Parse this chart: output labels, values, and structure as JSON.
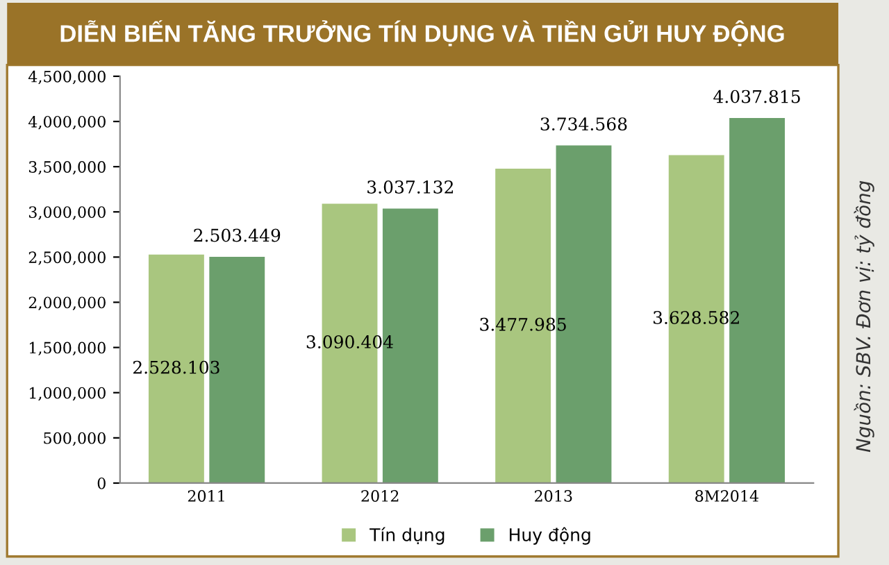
{
  "chart_data": {
    "type": "bar",
    "title": "DIỄN BIẾN TĂNG TRƯỞNG TÍN DỤNG VÀ TIỀN GỬI HUY ĐỘNG",
    "categories": [
      "2011",
      "2012",
      "2013",
      "8M2014"
    ],
    "series": [
      {
        "name": "Tín dụng",
        "color": "#a9c67f",
        "values": [
          2528103,
          3090404,
          3477985,
          3628582
        ],
        "value_labels": [
          "2.528.103",
          "3.090.404",
          "3.477.985",
          "3.628.582"
        ]
      },
      {
        "name": "Huy động",
        "color": "#6b9f6c",
        "values": [
          2503449,
          3037132,
          3734568,
          4037815
        ],
        "value_labels": [
          "2.503.449",
          "3.037.132",
          "3.734.568",
          "4.037.815"
        ]
      }
    ],
    "ylim": [
      0,
      4500000
    ],
    "yticks": [
      {
        "value": 0,
        "label": "0"
      },
      {
        "value": 500000,
        "label": "500,000"
      },
      {
        "value": 1000000,
        "label": "1,000,000"
      },
      {
        "value": 1500000,
        "label": "1,500,000"
      },
      {
        "value": 2000000,
        "label": "2,000,000"
      },
      {
        "value": 2500000,
        "label": "2,500,000"
      },
      {
        "value": 3000000,
        "label": "3,000,000"
      },
      {
        "value": 3500000,
        "label": "3,500,000"
      },
      {
        "value": 4000000,
        "label": "4,000,000"
      },
      {
        "value": 4500000,
        "label": "4,500,000"
      }
    ],
    "grid": false,
    "legend": "bottom",
    "annotations": [
      "Nguồn: SBV. Đơn vị: tỷ đồng"
    ]
  }
}
